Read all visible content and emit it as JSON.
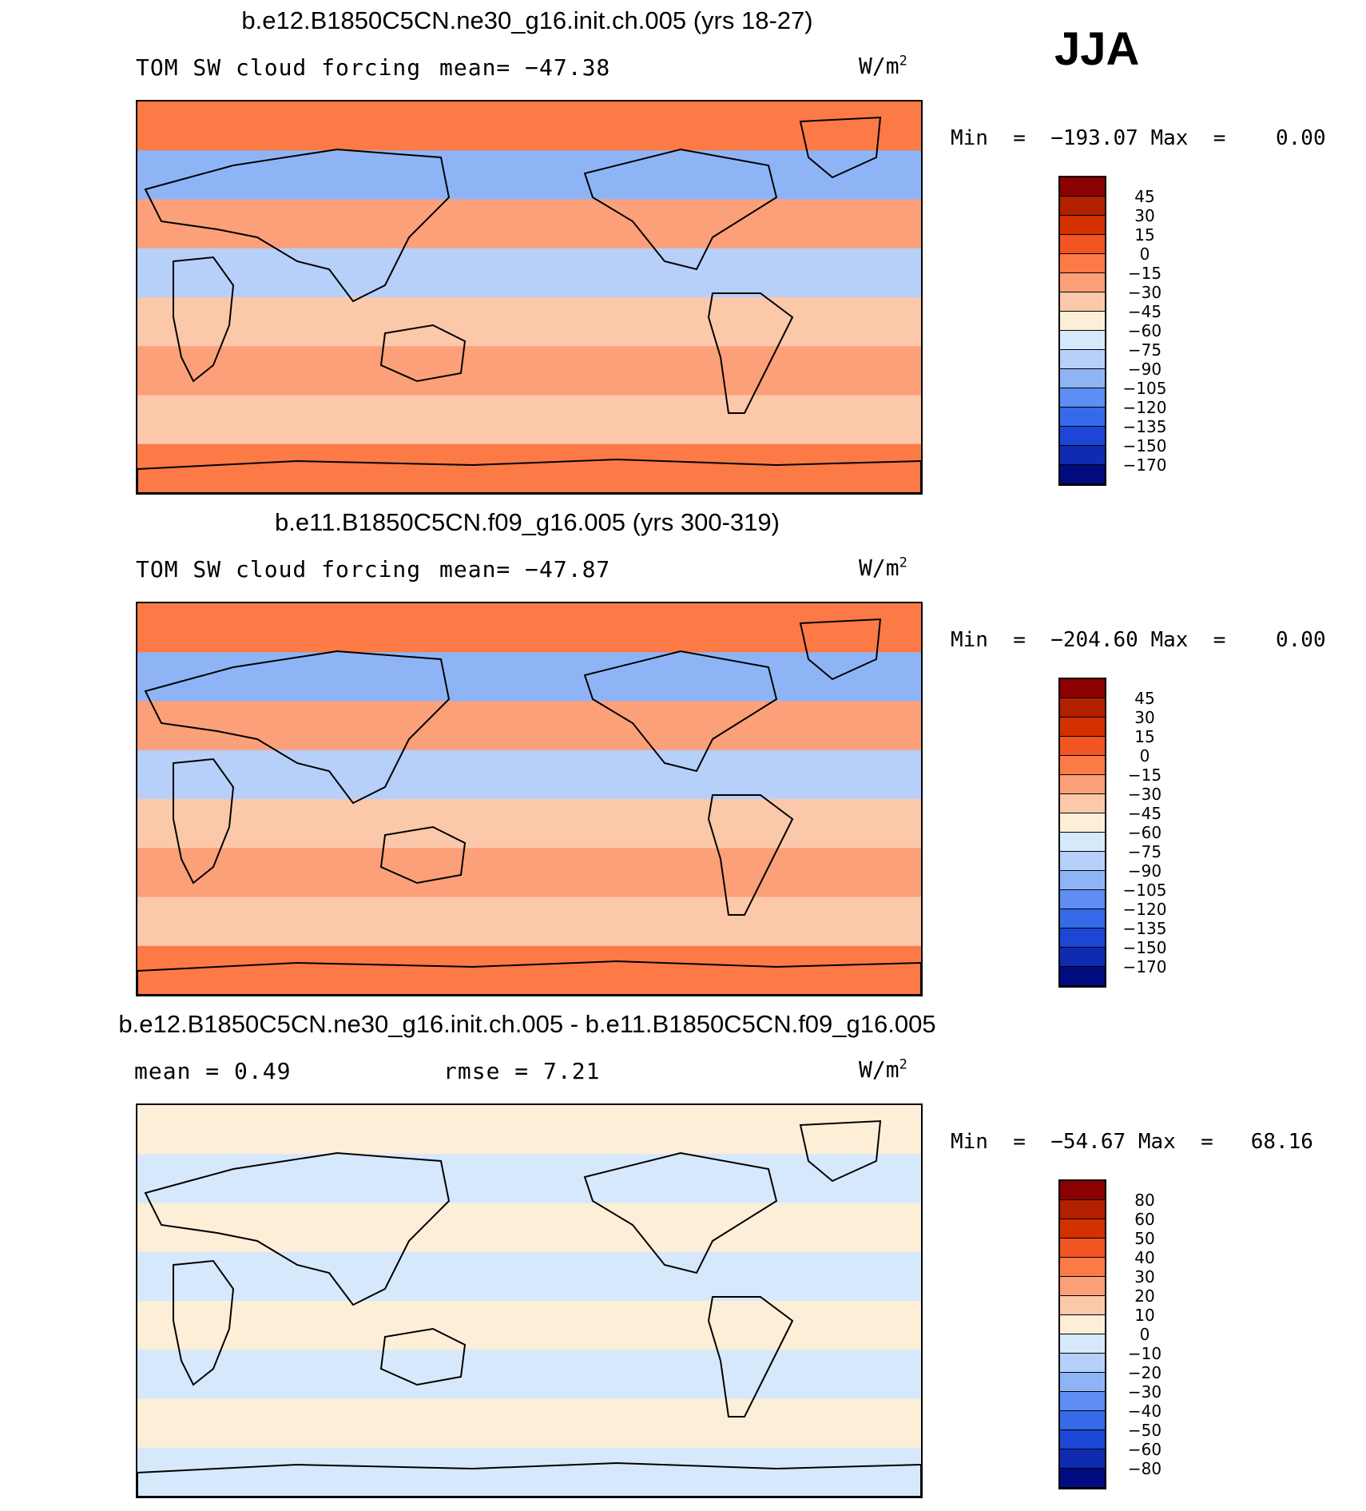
{
  "season": "JJA",
  "panels": [
    {
      "title": "b.e12.B1850C5CN.ne30_g16.init.ch.005 (yrs 18-27)",
      "left_label": "TOM SW cloud forcing",
      "mid_label": "mean= −47.38",
      "units": "W/m",
      "units_exp": "2",
      "min_label": "Min  =  −193.07",
      "max_label": "Max  =    0.00",
      "colorbar": {
        "ticks": [
          "45",
          "30",
          "15",
          "0",
          "−15",
          "−30",
          "−45",
          "−60",
          "−75",
          "−90",
          "−105",
          "−120",
          "−135",
          "−150",
          "−170"
        ],
        "colors": [
          "#8b0000",
          "#b22000",
          "#d33000",
          "#f25522",
          "#fb7a46",
          "#fca07a",
          "#fcc8aa",
          "#fdeed8",
          "#d6e8fb",
          "#b6d0fa",
          "#8fb4f6",
          "#5e8ef3",
          "#356ae8",
          "#1c46d6",
          "#0f2cb0",
          "#000c80"
        ]
      },
      "map": {
        "bands": [
          "#fb7a46",
          "#8fb4f6",
          "#fca07a",
          "#b6d0fa",
          "#fcc8aa",
          "#fca07a",
          "#fcc8aa",
          "#fb7a46"
        ]
      }
    },
    {
      "title": "b.e11.B1850C5CN.f09_g16.005 (yrs 300-319)",
      "left_label": "TOM SW cloud forcing",
      "mid_label": "mean= −47.87",
      "units": "W/m",
      "units_exp": "2",
      "min_label": "Min  =  −204.60",
      "max_label": "Max  =    0.00",
      "colorbar": {
        "ticks": [
          "45",
          "30",
          "15",
          "0",
          "−15",
          "−30",
          "−45",
          "−60",
          "−75",
          "−90",
          "−105",
          "−120",
          "−135",
          "−150",
          "−170"
        ],
        "colors": [
          "#8b0000",
          "#b22000",
          "#d33000",
          "#f25522",
          "#fb7a46",
          "#fca07a",
          "#fcc8aa",
          "#fdeed8",
          "#d6e8fb",
          "#b6d0fa",
          "#8fb4f6",
          "#5e8ef3",
          "#356ae8",
          "#1c46d6",
          "#0f2cb0",
          "#000c80"
        ]
      },
      "map": {
        "bands": [
          "#fb7a46",
          "#8fb4f6",
          "#fca07a",
          "#b6d0fa",
          "#fcc8aa",
          "#fca07a",
          "#fcc8aa",
          "#fb7a46"
        ]
      }
    },
    {
      "title": "b.e12.B1850C5CN.ne30_g16.init.ch.005 - b.e11.B1850C5CN.f09_g16.005",
      "left_label": "mean =    0.49",
      "mid_label": "rmse =    7.21",
      "units": "W/m",
      "units_exp": "2",
      "min_label": "Min  =  −54.67",
      "max_label": "Max  =   68.16",
      "colorbar": {
        "ticks": [
          "80",
          "60",
          "50",
          "40",
          "30",
          "20",
          "10",
          "0",
          "−10",
          "−20",
          "−30",
          "−40",
          "−50",
          "−60",
          "−80"
        ],
        "colors": [
          "#8b0000",
          "#b22000",
          "#d33000",
          "#f25522",
          "#fb7a46",
          "#fca07a",
          "#fcc8aa",
          "#fdeed8",
          "#d6e8fb",
          "#b6d0fa",
          "#8fb4f6",
          "#5e8ef3",
          "#356ae8",
          "#1c46d6",
          "#0f2cb0",
          "#000c80"
        ]
      },
      "map": {
        "bands": [
          "#fdeed8",
          "#d6e8fb",
          "#fdeed8",
          "#d6e8fb",
          "#fdeed8",
          "#d6e8fb",
          "#fdeed8",
          "#d6e8fb"
        ]
      }
    }
  ]
}
